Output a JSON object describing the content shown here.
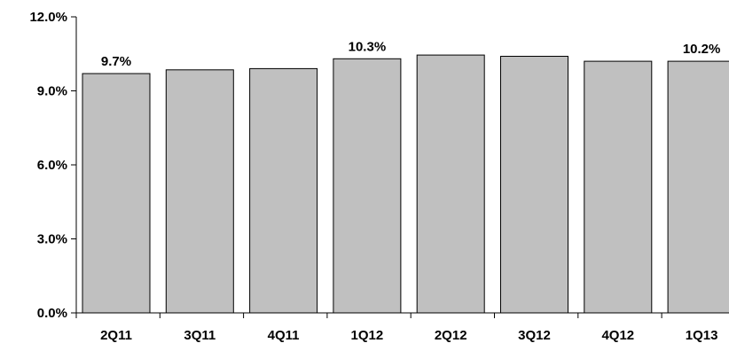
{
  "colors": {
    "bar_fill": "#c0c0c0",
    "bar_stroke": "#000000",
    "axis": "#000000",
    "background": "#ffffff"
  },
  "chart_data": {
    "type": "bar",
    "title": "",
    "xlabel": "",
    "ylabel": "",
    "categories": [
      "2Q11",
      "3Q11",
      "4Q11",
      "1Q12",
      "2Q12",
      "3Q12",
      "4Q12",
      "1Q13"
    ],
    "values": [
      9.7,
      9.85,
      9.9,
      10.3,
      10.45,
      10.4,
      10.2,
      10.2
    ],
    "ylim": [
      0,
      12
    ],
    "yticks": [
      0,
      3,
      6,
      9,
      12
    ],
    "ytick_labels": [
      "0.0%",
      "3.0%",
      "6.0%",
      "9.0%",
      "12.0%"
    ],
    "data_labels": [
      "9.7%",
      "",
      "",
      "10.3%",
      "",
      "",
      "",
      "10.2%"
    ],
    "grid": false,
    "legend": "none"
  }
}
